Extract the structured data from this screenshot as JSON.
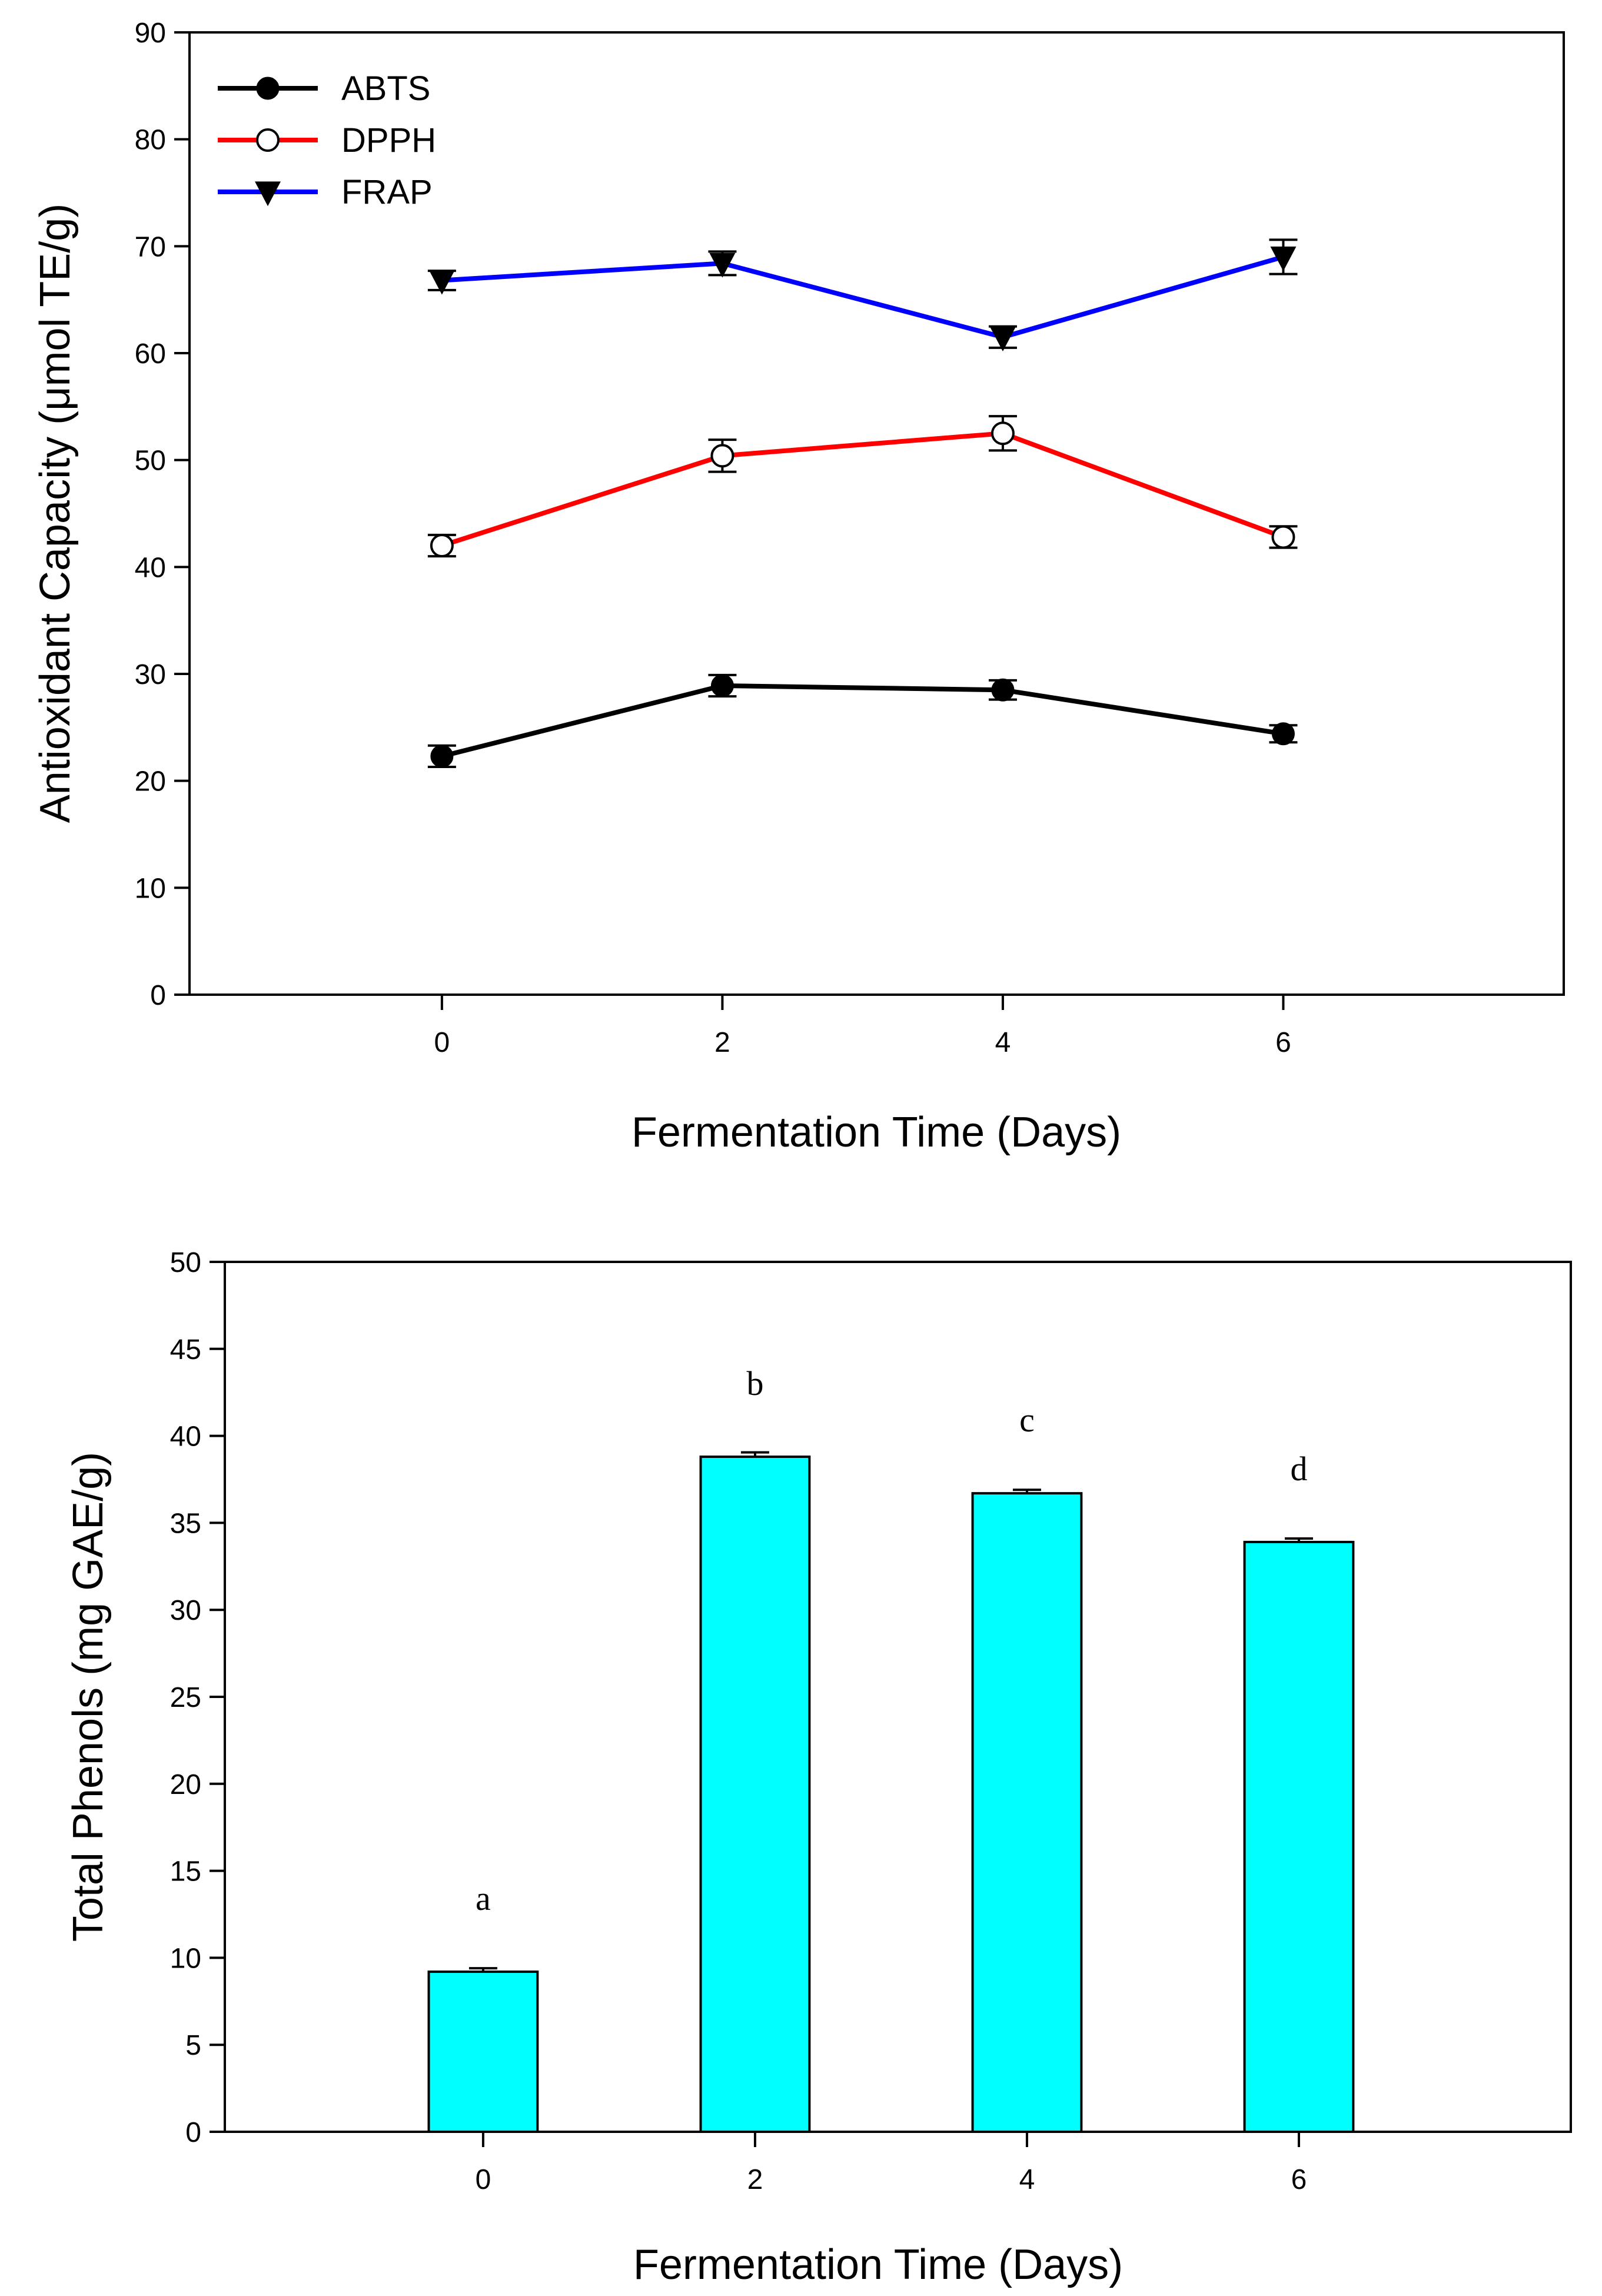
{
  "colors": {
    "abts": "#000000",
    "dpph": "#ff0000",
    "frap": "#0000ff",
    "bar_fill": "#00ffff",
    "axis": "#000000"
  },
  "chart_data": [
    {
      "type": "line",
      "title": "",
      "xlabel": "Fermentation Time (Days)",
      "ylabel": "Antioxidant Capacity (μmol TE/g)",
      "x": [
        0,
        2,
        4,
        6
      ],
      "xticks": [
        "0",
        "2",
        "4",
        "6"
      ],
      "xlim": [
        -1.8,
        8
      ],
      "ylim": [
        0,
        90
      ],
      "yticks": [
        "0",
        "10",
        "20",
        "30",
        "40",
        "50",
        "60",
        "70",
        "80",
        "90"
      ],
      "legend_position": "top-left",
      "series": [
        {
          "name": "ABTS",
          "marker": "filled-circle",
          "color": "#000000",
          "values": [
            22.3,
            28.9,
            28.5,
            24.4
          ],
          "errors": [
            1.0,
            1.0,
            0.9,
            0.8
          ]
        },
        {
          "name": "DPPH",
          "marker": "open-circle",
          "color": "#ff0000",
          "values": [
            42.0,
            50.4,
            52.5,
            42.8
          ],
          "errors": [
            1.0,
            1.5,
            1.6,
            1.0
          ]
        },
        {
          "name": "FRAP",
          "marker": "filled-triangle-down",
          "color": "#0000ff",
          "values": [
            66.8,
            68.4,
            61.5,
            69.0
          ],
          "errors": [
            0.9,
            1.1,
            1.0,
            1.6
          ]
        }
      ]
    },
    {
      "type": "bar",
      "title": "",
      "xlabel": "Fermentation Time (Days)",
      "ylabel": "Total Phenols (mg GAE/g)",
      "categories": [
        "0",
        "2",
        "4",
        "6"
      ],
      "x": [
        0,
        2,
        4,
        6
      ],
      "xlim": [
        -1.9,
        8
      ],
      "ylim": [
        0,
        50
      ],
      "yticks": [
        "0",
        "5",
        "10",
        "15",
        "20",
        "25",
        "30",
        "35",
        "40",
        "45",
        "50"
      ],
      "values": [
        9.2,
        38.8,
        36.7,
        33.9
      ],
      "errors": [
        0.2,
        0.25,
        0.2,
        0.2
      ],
      "letters": [
        "a",
        "b",
        "c",
        "d"
      ],
      "bar_width": 0.8
    }
  ]
}
